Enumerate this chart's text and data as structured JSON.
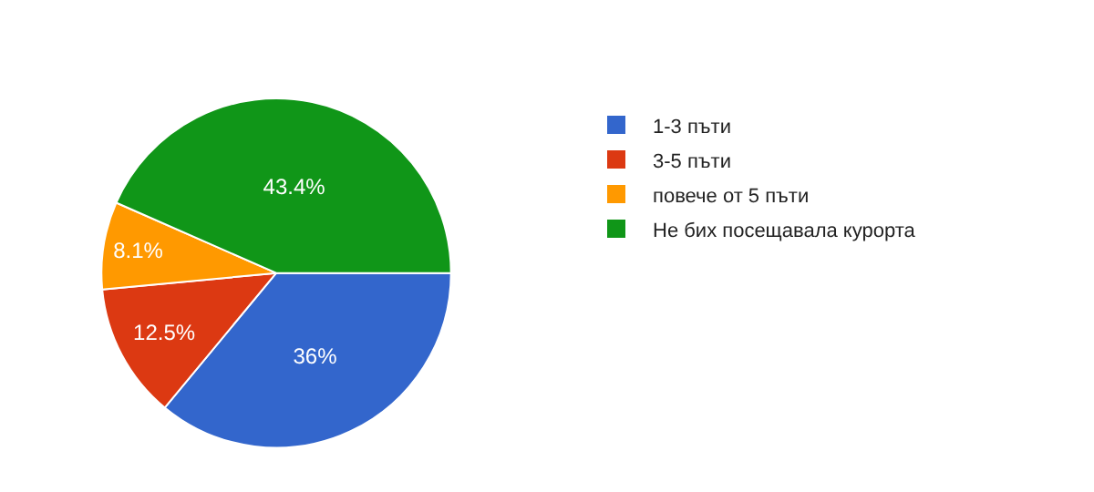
{
  "chart_data": {
    "type": "pie",
    "categories": [
      "1-3 пъти",
      "3-5 пъти",
      "повече от 5 пъти",
      "Не бих посещавала курорта"
    ],
    "values": [
      36,
      12.5,
      8.1,
      43.4
    ],
    "colors": [
      "#3366cc",
      "#dc3912",
      "#ff9900",
      "#109618"
    ],
    "value_labels": [
      "36%",
      "12.5%",
      "8.1%",
      "43.4%"
    ],
    "legend": "right"
  }
}
